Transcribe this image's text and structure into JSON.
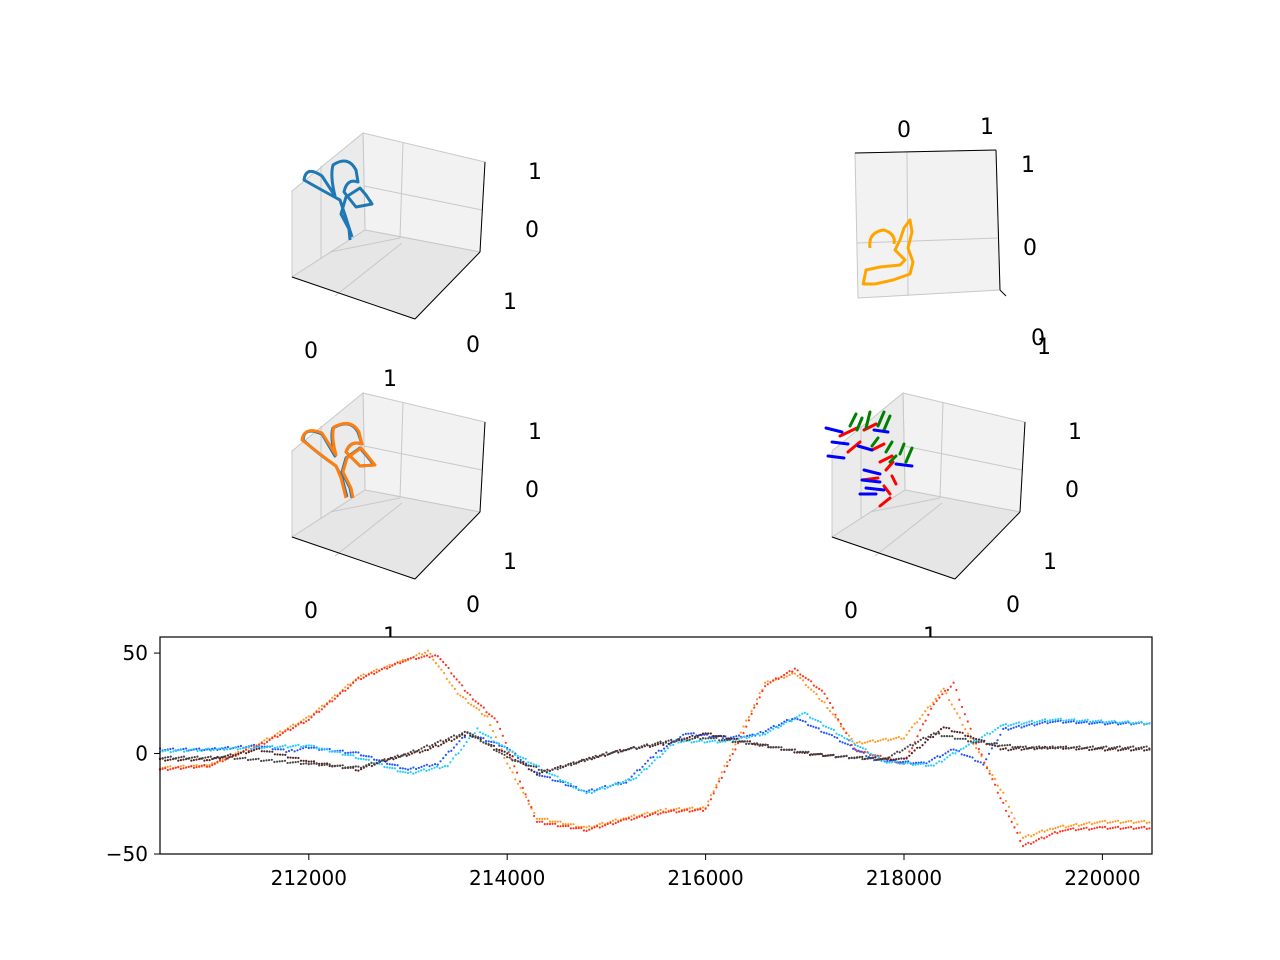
{
  "colors": {
    "traj_blue": "#1f77b4",
    "traj_orange": "#ff7f0e",
    "traj_gold": "#ffa500",
    "axis_red": "#ff0000",
    "axis_green": "#008000",
    "axis_blue": "#0000ff",
    "pane": "#f2f2f2",
    "grid": "#c8c8c8",
    "series_red": "#ff3322",
    "series_orange": "#ff9a22",
    "series_blue": "#2255ff",
    "series_cyan": "#22ccff",
    "series_dark": "#552222",
    "series_gray": "#444444"
  },
  "panels3d": {
    "tl": {
      "ticks": [
        "1",
        "0",
        "1",
        "0",
        "0",
        "1"
      ]
    },
    "tr": {
      "ticks": [
        "0",
        "1",
        "1",
        "0",
        "0",
        "1"
      ]
    },
    "ml": {
      "ticks": [
        "1",
        "0",
        "1",
        "0",
        "0",
        "1"
      ]
    },
    "mr": {
      "ticks": [
        "1",
        "0",
        "1",
        "0",
        "0",
        "1"
      ]
    }
  },
  "chart_data": {
    "type": "scatter",
    "xlim": [
      210500,
      220500
    ],
    "ylim": [
      -50,
      58
    ],
    "xticks": [
      "212000",
      "214000",
      "216000",
      "218000",
      "220000"
    ],
    "yticks": [
      "50",
      "0",
      "−50"
    ],
    "xtick_values": [
      212000,
      214000,
      216000,
      218000,
      220000
    ],
    "ytick_values": [
      50,
      0,
      -50
    ],
    "grid": false,
    "series": [
      {
        "color_key": "series_orange",
        "points": [
          [
            210500,
            -7
          ],
          [
            211000,
            -6
          ],
          [
            211500,
            5
          ],
          [
            212000,
            18
          ],
          [
            212500,
            38
          ],
          [
            213000,
            47
          ],
          [
            213200,
            51
          ],
          [
            213500,
            30
          ],
          [
            213800,
            18
          ],
          [
            214000,
            -5
          ],
          [
            214300,
            -32
          ],
          [
            214800,
            -37
          ],
          [
            215200,
            -32
          ],
          [
            215600,
            -28
          ],
          [
            216000,
            -27
          ],
          [
            216300,
            5
          ],
          [
            216600,
            35
          ],
          [
            216900,
            40
          ],
          [
            217200,
            25
          ],
          [
            217500,
            5
          ],
          [
            218000,
            8
          ],
          [
            218400,
            32
          ],
          [
            218700,
            5
          ],
          [
            219000,
            -20
          ],
          [
            219200,
            -42
          ],
          [
            219500,
            -37
          ],
          [
            220000,
            -34
          ],
          [
            220500,
            -34
          ]
        ]
      },
      {
        "color_key": "series_red",
        "points": [
          [
            210500,
            -8
          ],
          [
            211000,
            -6
          ],
          [
            211500,
            4
          ],
          [
            212000,
            17
          ],
          [
            212500,
            37
          ],
          [
            213000,
            47
          ],
          [
            213300,
            49
          ],
          [
            213600,
            30
          ],
          [
            213900,
            16
          ],
          [
            214100,
            -10
          ],
          [
            214300,
            -34
          ],
          [
            214800,
            -38
          ],
          [
            215200,
            -33
          ],
          [
            215600,
            -29
          ],
          [
            216000,
            -28
          ],
          [
            216300,
            2
          ],
          [
            216600,
            34
          ],
          [
            216900,
            42
          ],
          [
            217200,
            30
          ],
          [
            217500,
            2
          ],
          [
            218000,
            -5
          ],
          [
            218300,
            25
          ],
          [
            218500,
            35
          ],
          [
            218700,
            8
          ],
          [
            219000,
            -25
          ],
          [
            219200,
            -46
          ],
          [
            219600,
            -38
          ],
          [
            220000,
            -37
          ],
          [
            220500,
            -37
          ]
        ]
      },
      {
        "color_key": "series_blue",
        "points": [
          [
            210500,
            2
          ],
          [
            211000,
            2
          ],
          [
            211500,
            4
          ],
          [
            211800,
            1
          ],
          [
            212000,
            3
          ],
          [
            212500,
            0
          ],
          [
            213000,
            -8
          ],
          [
            213300,
            -5
          ],
          [
            213600,
            10
          ],
          [
            214000,
            3
          ],
          [
            214300,
            -10
          ],
          [
            214800,
            -19
          ],
          [
            215200,
            -14
          ],
          [
            215500,
            0
          ],
          [
            215800,
            10
          ],
          [
            216200,
            8
          ],
          [
            216500,
            9
          ],
          [
            216900,
            18
          ],
          [
            217300,
            8
          ],
          [
            217700,
            -3
          ],
          [
            218200,
            -5
          ],
          [
            218500,
            2
          ],
          [
            218800,
            -5
          ],
          [
            219000,
            12
          ],
          [
            219500,
            16
          ],
          [
            220000,
            15
          ],
          [
            220500,
            15
          ]
        ]
      },
      {
        "color_key": "series_cyan",
        "points": [
          [
            210500,
            1
          ],
          [
            211500,
            3
          ],
          [
            212000,
            4
          ],
          [
            212500,
            -2
          ],
          [
            213000,
            -10
          ],
          [
            213400,
            -6
          ],
          [
            213700,
            12
          ],
          [
            214000,
            2
          ],
          [
            214400,
            -9
          ],
          [
            214800,
            -20
          ],
          [
            215300,
            -12
          ],
          [
            215700,
            6
          ],
          [
            216200,
            6
          ],
          [
            216600,
            10
          ],
          [
            217000,
            20
          ],
          [
            217400,
            8
          ],
          [
            217800,
            -4
          ],
          [
            218300,
            -6
          ],
          [
            218600,
            3
          ],
          [
            219000,
            14
          ],
          [
            219500,
            17
          ],
          [
            220500,
            15
          ]
        ]
      },
      {
        "color_key": "series_dark",
        "points": [
          [
            210500,
            -3
          ],
          [
            211000,
            -3
          ],
          [
            211500,
            2
          ],
          [
            212000,
            -4
          ],
          [
            212500,
            -8
          ],
          [
            212800,
            -3
          ],
          [
            213200,
            2
          ],
          [
            213600,
            10
          ],
          [
            214000,
            0
          ],
          [
            214300,
            -10
          ],
          [
            214800,
            -3
          ],
          [
            215200,
            2
          ],
          [
            215600,
            5
          ],
          [
            216000,
            10
          ],
          [
            216500,
            5
          ],
          [
            217000,
            0
          ],
          [
            217500,
            -2
          ],
          [
            218000,
            -3
          ],
          [
            218400,
            13
          ],
          [
            218700,
            8
          ],
          [
            219000,
            2
          ],
          [
            219500,
            3
          ],
          [
            220000,
            2
          ],
          [
            220500,
            2
          ]
        ]
      },
      {
        "color_key": "series_gray",
        "points": [
          [
            210500,
            -2
          ],
          [
            211200,
            -2
          ],
          [
            212000,
            -5
          ],
          [
            212500,
            -7
          ],
          [
            213000,
            0
          ],
          [
            213600,
            11
          ],
          [
            214000,
            -2
          ],
          [
            214400,
            -9
          ],
          [
            215000,
            0
          ],
          [
            215600,
            6
          ],
          [
            216000,
            8
          ],
          [
            216600,
            4
          ],
          [
            217200,
            -1
          ],
          [
            217800,
            -3
          ],
          [
            218300,
            10
          ],
          [
            218700,
            6
          ],
          [
            219200,
            3
          ],
          [
            220500,
            3
          ]
        ]
      }
    ]
  }
}
